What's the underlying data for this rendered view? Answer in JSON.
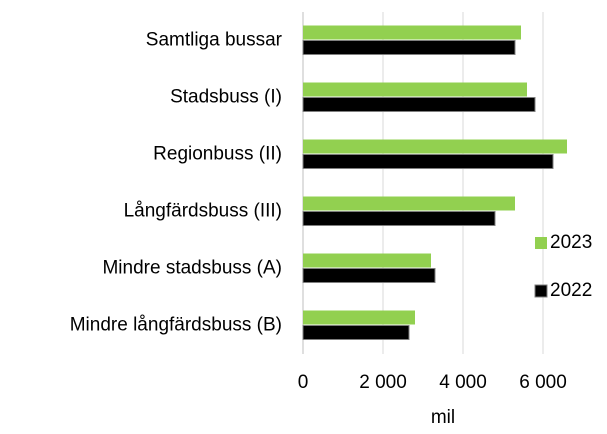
{
  "chart_data": {
    "type": "barh",
    "categories": [
      "Samtliga bussar",
      "Stadsbuss (I)",
      "Regionbuss (II)",
      "Långfärdsbuss (III)",
      "Mindre stadsbuss (A)",
      "Mindre långfärdsbuss (B)"
    ],
    "series": [
      {
        "name": "2023",
        "color": "#92d050",
        "values": [
          5450,
          5600,
          6600,
          5300,
          3200,
          2800
        ]
      },
      {
        "name": "2022",
        "color": "#000000",
        "values": [
          5300,
          5800,
          6250,
          4800,
          3300,
          2650
        ]
      }
    ],
    "xlim": [
      0,
      7000
    ],
    "xticks": [
      0,
      {
        "value": 2000,
        "label": "2 000"
      },
      {
        "value": 4000,
        "label": "4 000"
      },
      {
        "value": 6000,
        "label": "6 000"
      }
    ],
    "x_label": "mil",
    "grid": true,
    "legend": "right"
  }
}
